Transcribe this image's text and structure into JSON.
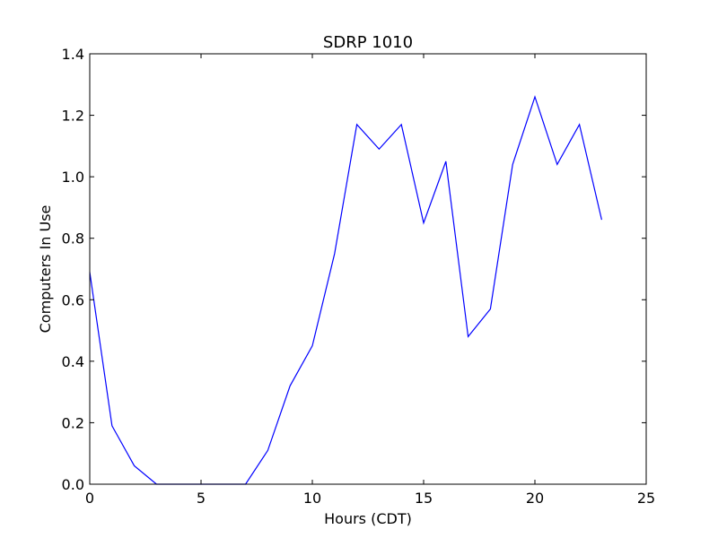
{
  "chart_data": {
    "type": "line",
    "title": "SDRP 1010",
    "xlabel": "Hours (CDT)",
    "ylabel": "Computers In Use",
    "xlim": [
      0,
      25
    ],
    "ylim": [
      0,
      1.4
    ],
    "xticks": [
      0,
      5,
      10,
      15,
      20,
      25
    ],
    "xtick_labels": [
      "0",
      "5",
      "10",
      "15",
      "20",
      "25"
    ],
    "yticks": [
      0.0,
      0.2,
      0.4,
      0.6,
      0.8,
      1.0,
      1.2,
      1.4
    ],
    "ytick_labels": [
      "0.0",
      "0.2",
      "0.4",
      "0.6",
      "0.8",
      "1.0",
      "1.2",
      "1.4"
    ],
    "grid": false,
    "series": [
      {
        "color": "#0000ff",
        "x": [
          0,
          1,
          2,
          3,
          4,
          5,
          6,
          7,
          8,
          9,
          10,
          11,
          12,
          13,
          14,
          15,
          16,
          17,
          18,
          19,
          20,
          21,
          22,
          23
        ],
        "values": [
          0.69,
          0.19,
          0.06,
          0.0,
          0.0,
          0.0,
          0.0,
          0.0,
          0.11,
          0.32,
          0.45,
          0.75,
          1.17,
          1.09,
          1.17,
          0.85,
          1.05,
          0.48,
          0.57,
          1.04,
          1.26,
          1.04,
          1.17,
          0.86
        ]
      }
    ]
  }
}
